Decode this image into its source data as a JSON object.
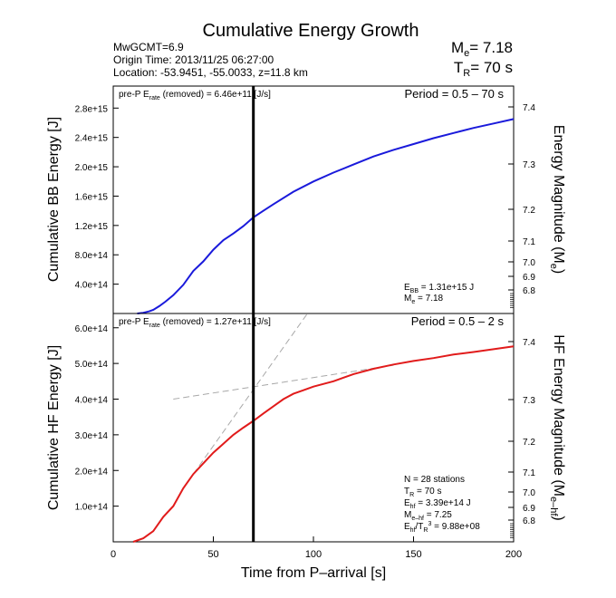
{
  "header": {
    "title": "Cumulative Energy Growth",
    "info_lines": [
      "MwGCMT=6.9",
      "Origin Time: 2013/11/25 06:27:00",
      "Location: -53.9451, -55.0033, z=11.8 km"
    ],
    "me_label": "M",
    "me_sub": "e",
    "me_value": "= 7.18",
    "tr_label": "T",
    "tr_sub": "R",
    "tr_value": "= 70 s"
  },
  "colors": {
    "bb": "#1a1adb",
    "hf": "#e11b1b",
    "marker": "#000000",
    "dashed": "#a8a8a8"
  },
  "chart_data": [
    {
      "type": "line",
      "title": "",
      "xlim": [
        0,
        200
      ],
      "ylim": [
        0,
        3100000000000000.0
      ],
      "ylabel": "Cumulative BB Energy [J]",
      "y2label_main": "Energy Magnitude (M",
      "y2label_sub": "e",
      "y2label_end": ")",
      "yticks": [
        400000000000000.0,
        800000000000000.0,
        1200000000000000.0,
        1600000000000000.0,
        2000000000000000.0,
        2400000000000000.0,
        2800000000000000.0
      ],
      "ytick_labels": [
        "4.0e+14",
        "8.0e+14",
        "1.2e+15",
        "1.6e+15",
        "2.0e+15",
        "2.4e+15",
        "2.8e+15"
      ],
      "y2ticks": [
        "7.4",
        "7.3",
        "7.2",
        "7.1",
        "7.0",
        "6.9",
        "6.8"
      ],
      "label_left_pre": "pre-P E",
      "label_left_sub": "rate",
      "label_left_post": " (removed) = 6.46e+11 [J/s]",
      "label_right": "Period = 0.5 – 70 s",
      "annotations": [
        {
          "main": "E",
          "sub": "BB",
          "rest": " = 1.31e+15 J"
        },
        {
          "main": "M",
          "sub": "e",
          "rest": " = 7.18"
        }
      ],
      "marker_x": 70,
      "series": [
        {
          "x": [
            12,
            15,
            18,
            20,
            23,
            26,
            30,
            35,
            40,
            45,
            50,
            55,
            60,
            65,
            70,
            75,
            80,
            90,
            100,
            110,
            120,
            130,
            140,
            150,
            160,
            170,
            180,
            190,
            200
          ],
          "values": [
            0,
            10000000000000.0,
            30000000000000.0,
            50000000000000.0,
            100000000000000.0,
            160000000000000.0,
            250000000000000.0,
            390000000000000.0,
            580000000000000.0,
            710000000000000.0,
            870000000000000.0,
            1000000000000000.0,
            1090000000000000.0,
            1190000000000000.0,
            1310000000000000.0,
            1400000000000000.0,
            1490000000000000.0,
            1660000000000000.0,
            1800000000000000.0,
            1920000000000000.0,
            2030000000000000.0,
            2140000000000000.0,
            2230000000000000.0,
            2310000000000000.0,
            2390000000000000.0,
            2460000000000000.0,
            2530000000000000.0,
            2590000000000000.0,
            2650000000000000.0
          ]
        }
      ]
    },
    {
      "type": "line",
      "title": "",
      "xlabel": "Time from P–arrival [s]",
      "xlim": [
        0,
        200
      ],
      "ylim": [
        0,
        640000000000000.0
      ],
      "ylabel": "Cumulative HF Energy [J]",
      "y2label_main": "HF Energy Magnitude (M",
      "y2label_sub": "e–hf",
      "y2label_end": ")",
      "xticks": [
        0,
        50,
        100,
        150,
        200
      ],
      "yticks": [
        100000000000000.0,
        200000000000000.0,
        300000000000000.0,
        400000000000000.0,
        500000000000000.0,
        600000000000000.0
      ],
      "ytick_labels": [
        "1.0e+14",
        "2.0e+14",
        "3.0e+14",
        "4.0e+14",
        "5.0e+14",
        "6.0e+14"
      ],
      "y2ticks": [
        "7.4",
        "7.3",
        "7.2",
        "7.1",
        "7.0",
        "6.9",
        "6.8"
      ],
      "label_left_pre": "pre-P E",
      "label_left_sub": "rate",
      "label_left_post": " (removed) = 1.27e+11 [J/s]",
      "label_right": "Period = 0.5 – 2 s",
      "annotations": [
        {
          "main": "N = 28 stations",
          "sub": "",
          "rest": ""
        },
        {
          "main": "T",
          "sub": "R",
          "rest": " = 70  s"
        },
        {
          "main": "E",
          "sub": "hf",
          "rest": " = 3.39e+14 J"
        },
        {
          "main": "M",
          "sub": "e–hf",
          "rest": " = 7.25"
        },
        {
          "main": "E",
          "sub": "hf",
          "rest": "/T",
          "sub2": "R",
          "sup": "3",
          "rest2": " =  9.88e+08"
        }
      ],
      "marker_x": 70,
      "dashed_lines": [
        {
          "x": [
            30,
            140
          ],
          "values": [
            400000000000000.0,
            495000000000000.0
          ]
        },
        {
          "x": [
            40,
            97
          ],
          "values": [
            190000000000000.0,
            640000000000000.0
          ]
        }
      ],
      "series": [
        {
          "x": [
            10,
            15,
            20,
            25,
            30,
            35,
            40,
            45,
            50,
            55,
            60,
            65,
            70,
            75,
            80,
            85,
            90,
            95,
            100,
            110,
            120,
            130,
            140,
            150,
            160,
            170,
            180,
            190,
            200
          ],
          "values": [
            0,
            10000000000000.0,
            30000000000000.0,
            70000000000000.0,
            100000000000000.0,
            150000000000000.0,
            190000000000000.0,
            220000000000000.0,
            250000000000000.0,
            275000000000000.0,
            300000000000000.0,
            320000000000000.0,
            339000000000000.0,
            360000000000000.0,
            380000000000000.0,
            400000000000000.0,
            415000000000000.0,
            425000000000000.0,
            435000000000000.0,
            450000000000000.0,
            470000000000000.0,
            485000000000000.0,
            497000000000000.0,
            507000000000000.0,
            515000000000000.0,
            525000000000000.0,
            532000000000000.0,
            540000000000000.0,
            548000000000000.0
          ]
        }
      ]
    }
  ]
}
